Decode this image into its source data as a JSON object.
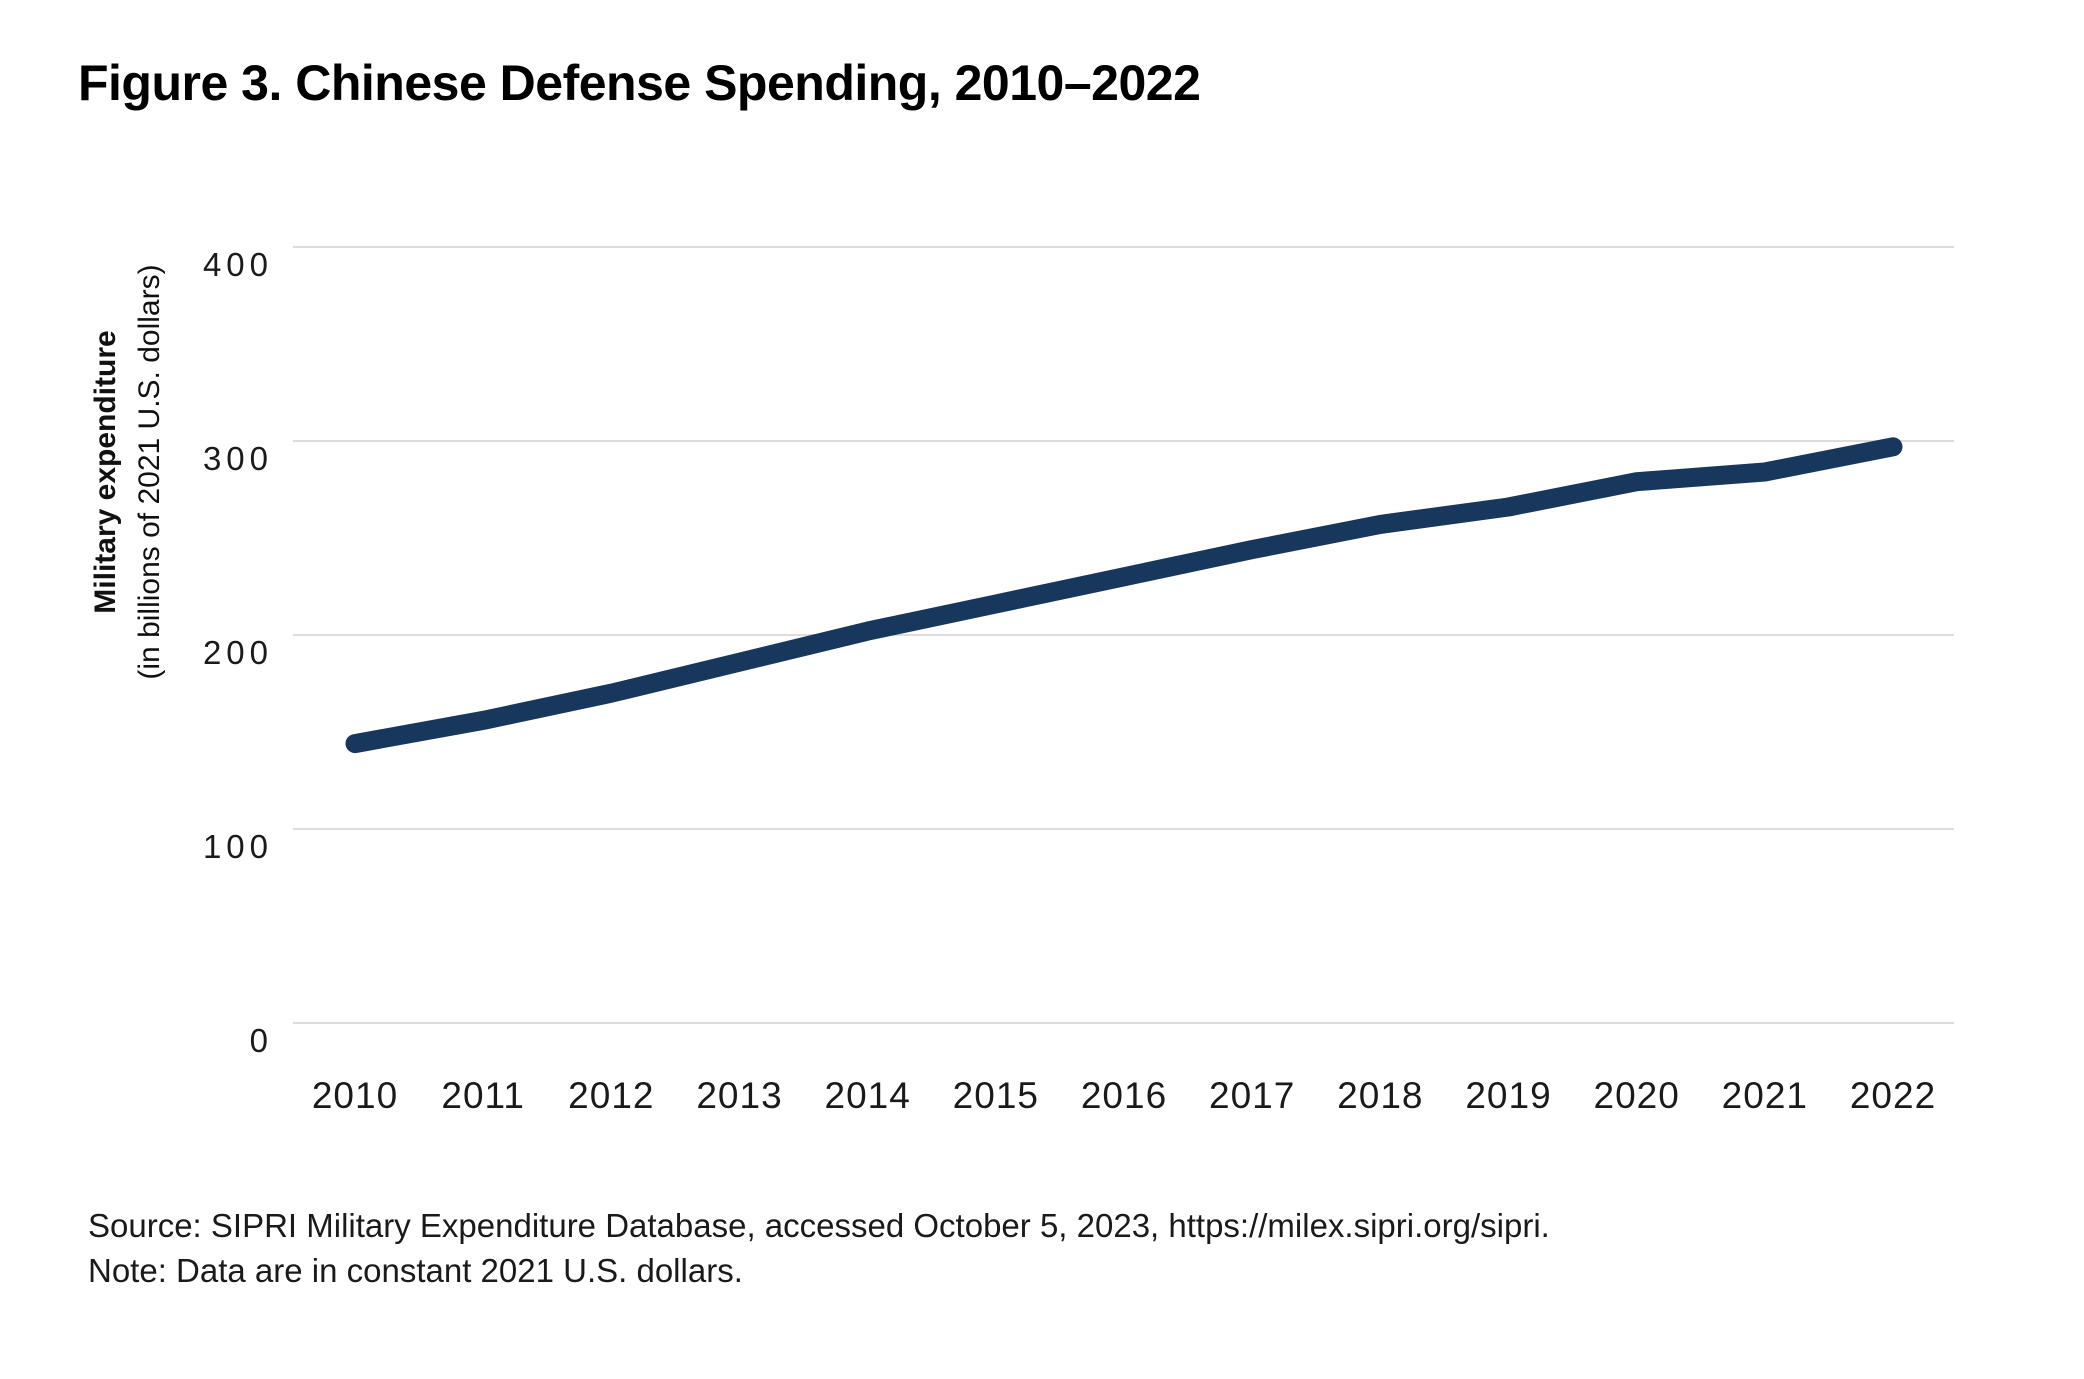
{
  "page": {
    "title": "Figure 3. Chinese Defense Spending, 2010–2022"
  },
  "chart_data": {
    "type": "line",
    "title": "Figure 3. Chinese Defense Spending, 2010–2022",
    "x": [
      2010,
      2011,
      2012,
      2013,
      2014,
      2015,
      2016,
      2017,
      2018,
      2019,
      2020,
      2021,
      2022
    ],
    "values": [
      144,
      156,
      170,
      186,
      202,
      216,
      230,
      244,
      257,
      266,
      279,
      284,
      297
    ],
    "series_name": "Chinese military expenditure",
    "xlabel": "",
    "ylabel": "Military expenditure",
    "ylabel_sub": "(in billions of 2021 U.S. dollars)",
    "yticks": [
      0,
      100,
      200,
      300,
      400
    ],
    "ylim": [
      0,
      400
    ],
    "grid": "horizontal",
    "legend": "none",
    "line_color": "#17375C",
    "grid_color": "#DCDCDC",
    "tick_text_color": "#1a1a1a"
  },
  "footer": {
    "source": "Source: SIPRI Military Expenditure Database, accessed October 5, 2023, https://milex.sipri.org/sipri.",
    "note": "Note: Data are in constant 2021 U.S. dollars."
  }
}
